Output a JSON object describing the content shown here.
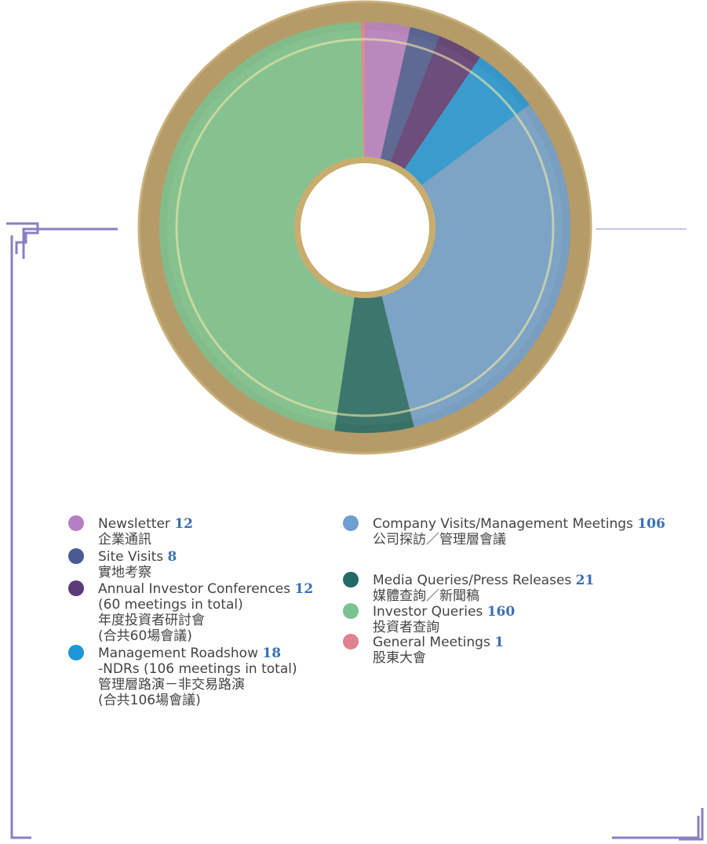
{
  "chart_data": {
    "type": "pie",
    "categories": [
      "Newsletter",
      "Site Visits",
      "Annual Investor Conferences",
      "Management Roadshow",
      "Company Visits/Management Meetings",
      "Media Queries/Press Releases",
      "Investor Queries",
      "General Meetings"
    ],
    "values": [
      12,
      8,
      12,
      18,
      106,
      21,
      160,
      1
    ],
    "colors": [
      "#b57fc4",
      "#4a5a95",
      "#5a3a78",
      "#1e96d8",
      "#6f9fcf",
      "#236a66",
      "#79c290",
      "#e0828f"
    ],
    "details": [
      [
        "企業通訊"
      ],
      [
        "實地考察"
      ],
      [
        "(60 meetings in total)",
        "年度投資者研討會",
        "(合共60場會議)"
      ],
      [
        "-NDRs (106 meetings in total)",
        "管理層路演－非交易路演",
        "(合共106場會議)"
      ],
      [
        "公司探訪／管理層會議"
      ],
      [
        "媒體查詢／新聞稿"
      ],
      [
        "投資者查詢"
      ],
      [
        "股東大會"
      ]
    ]
  }
}
